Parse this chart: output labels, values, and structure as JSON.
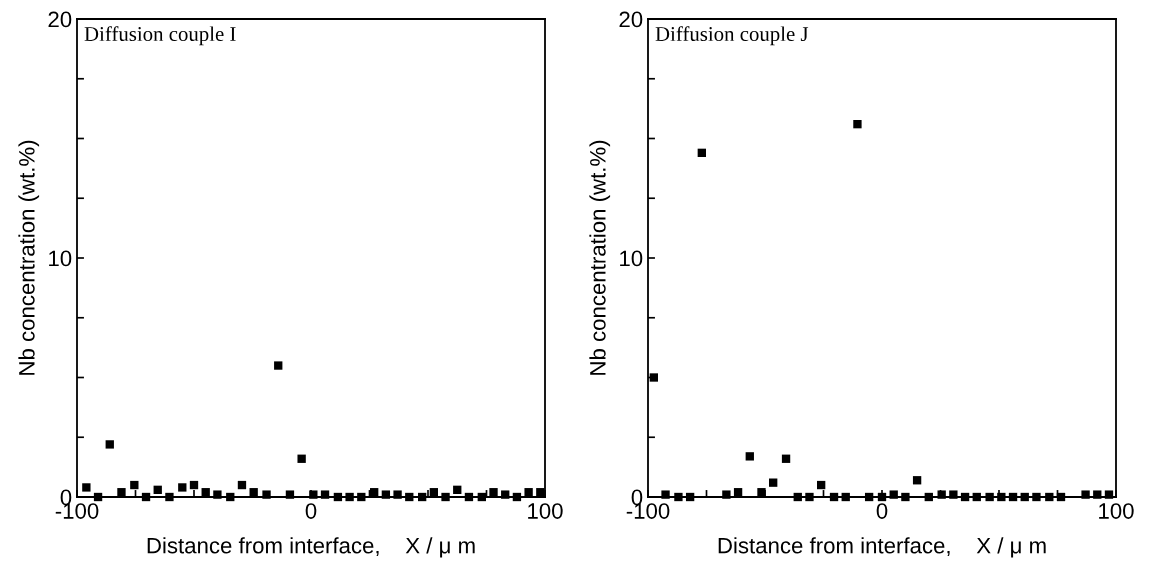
{
  "chart_data": [
    {
      "type": "scatter",
      "annotations": [
        "Diffusion couple I"
      ],
      "xlabel": "Distance from interface,    X / μ m",
      "ylabel": "Nb concentration (wt.%)",
      "marker": "square",
      "grid": false,
      "xlim": [
        -100,
        100
      ],
      "ylim": [
        0,
        20
      ],
      "xticks": [
        -100,
        {
          "value": -75,
          "label": null
        },
        {
          "value": -50,
          "label": null
        },
        {
          "value": -25,
          "label": null
        },
        0,
        {
          "value": 25,
          "label": null
        },
        {
          "value": 50,
          "label": null
        },
        {
          "value": 75,
          "label": null
        },
        100
      ],
      "yticks": [
        0,
        {
          "value": 2.5,
          "label": null
        },
        {
          "value": 5,
          "label": null
        },
        {
          "value": 7.5,
          "label": null
        },
        10,
        {
          "value": 12.5,
          "label": null
        },
        {
          "value": 15,
          "label": null
        },
        {
          "value": 17.5,
          "label": null
        },
        20
      ],
      "series": [
        {
          "color": "#000000",
          "x": [
            -96,
            -91,
            -86,
            -81,
            -75.5,
            -70.5,
            -65.5,
            -60.5,
            -55,
            -50,
            -45,
            -40,
            -34.5,
            -29.5,
            -24.5,
            -19,
            -14,
            -9,
            -4,
            1,
            6,
            11.5,
            16.5,
            21.5,
            27,
            32,
            37,
            42,
            47.5,
            52.5,
            57.5,
            62.5,
            67.5,
            73,
            78,
            83,
            88,
            93,
            98
          ],
          "values": [
            0.4,
            0,
            2.2,
            0.2,
            0.5,
            0,
            0.3,
            0,
            0.4,
            0.5,
            0.2,
            0.1,
            0,
            0.5,
            0.2,
            0.1,
            5.5,
            0.1,
            1.6,
            0.1,
            0.1,
            0,
            0,
            0,
            0.2,
            0.1,
            0.1,
            0,
            0,
            0.2,
            0,
            0.3,
            0,
            0,
            0.2,
            0.1,
            0,
            0.2,
            0.2
          ]
        }
      ]
    },
    {
      "type": "scatter",
      "annotations": [
        "Diffusion couple J"
      ],
      "xlabel": "Distance from interface,    X / μ m",
      "ylabel": "Nb concentration (wt.%)",
      "marker": "square",
      "grid": false,
      "xlim": [
        -100,
        100
      ],
      "ylim": [
        0,
        20
      ],
      "xticks": [
        -100,
        {
          "value": -75,
          "label": null
        },
        {
          "value": -50,
          "label": null
        },
        {
          "value": -25,
          "label": null
        },
        0,
        {
          "value": 25,
          "label": null
        },
        {
          "value": 50,
          "label": null
        },
        {
          "value": 75,
          "label": null
        },
        100
      ],
      "yticks": [
        0,
        {
          "value": 2.5,
          "label": null
        },
        {
          "value": 5,
          "label": null
        },
        {
          "value": 7.5,
          "label": null
        },
        10,
        {
          "value": 12.5,
          "label": null
        },
        {
          "value": 15,
          "label": null
        },
        {
          "value": 17.5,
          "label": null
        },
        20
      ],
      "series": [
        {
          "color": "#000000",
          "x": [
            -97.5,
            -92.5,
            -87,
            -82,
            -77,
            -66.5,
            -61.5,
            -56.5,
            -51.5,
            -46.5,
            -41,
            -36,
            -31,
            -26,
            -20.5,
            -15.5,
            -10.5,
            -5.5,
            0,
            5,
            10,
            15,
            20,
            25.5,
            30.5,
            35.5,
            40.5,
            46,
            51,
            56,
            61,
            66,
            71.5,
            76.5,
            87,
            92,
            97
          ],
          "values": [
            5,
            0.1,
            0,
            0,
            14.4,
            0.1,
            0.2,
            1.7,
            0.2,
            0.6,
            1.6,
            0,
            0,
            0.5,
            0,
            0,
            15.6,
            0,
            0,
            0.1,
            0,
            0.7,
            0,
            0.1,
            0.1,
            0,
            0,
            0,
            0,
            0,
            0,
            0,
            0,
            0,
            0.1,
            0.1,
            0.1
          ]
        }
      ]
    }
  ]
}
